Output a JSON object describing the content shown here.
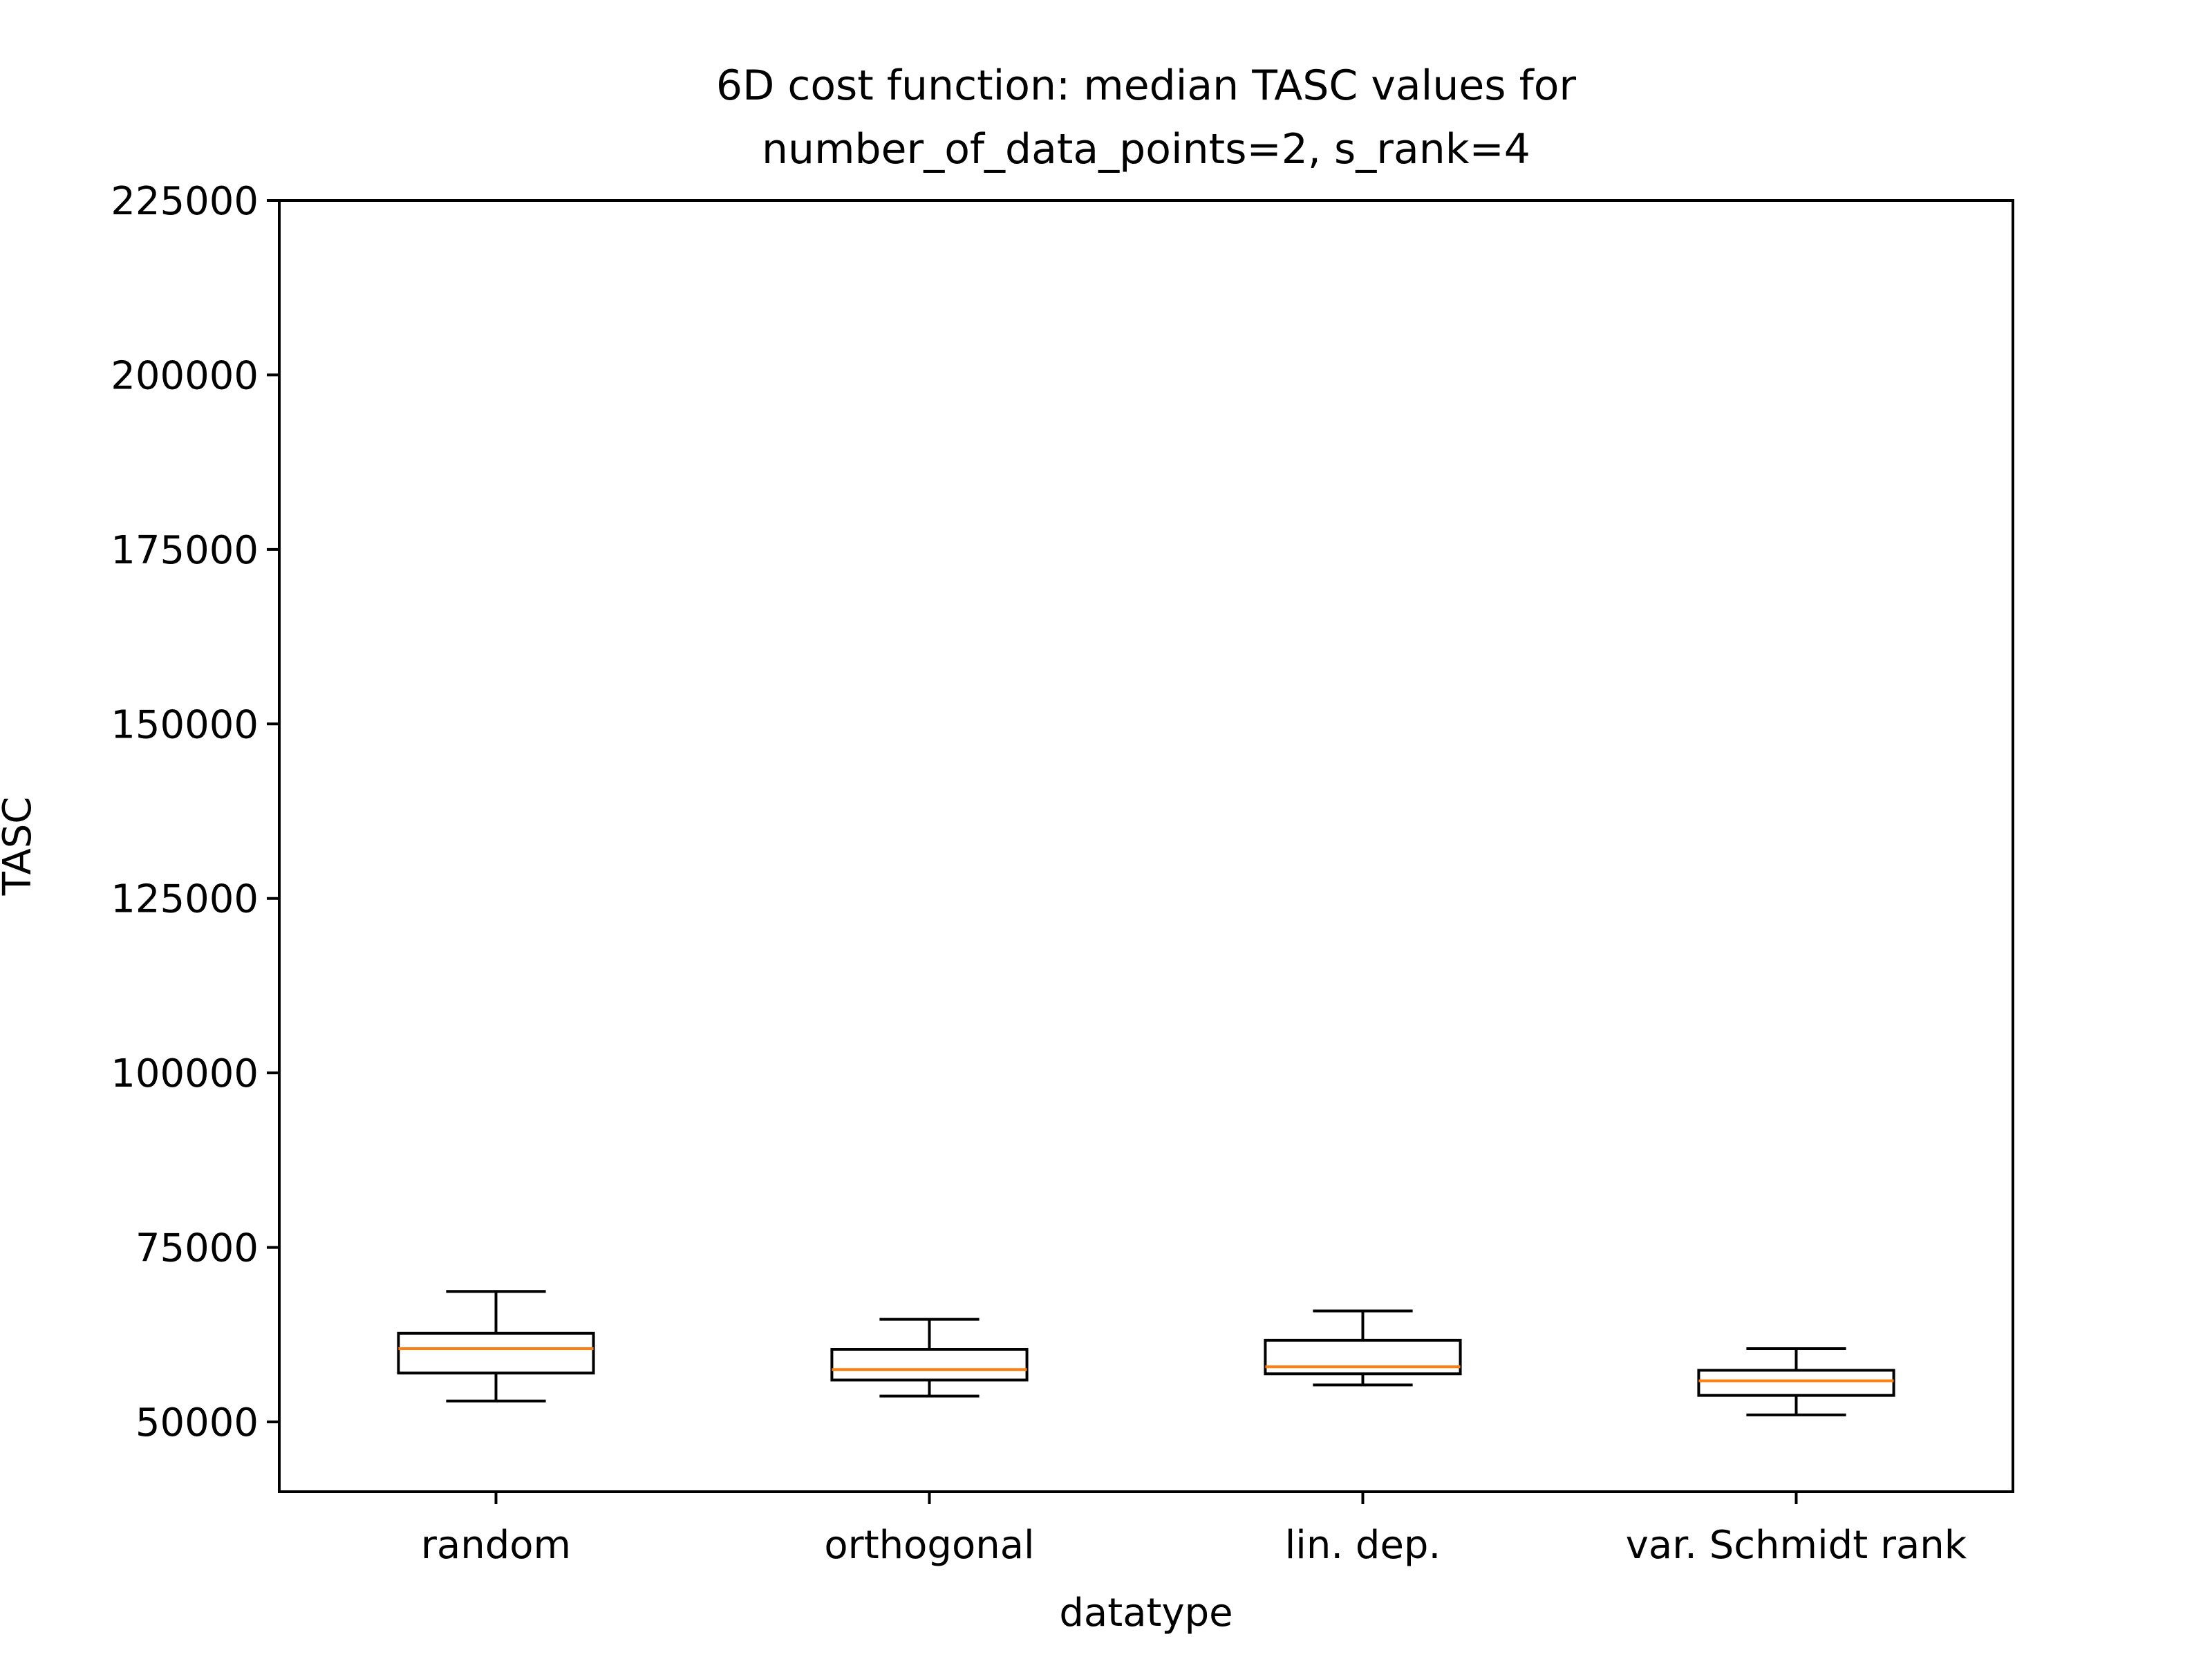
{
  "chart_data": {
    "type": "box",
    "title": [
      "6D cost function: median TASC values for",
      "number_of_data_points=2, s_rank=4"
    ],
    "xlabel": "datatype",
    "ylabel": "TASC",
    "ylim": [
      40000,
      225000
    ],
    "yticks": [
      50000,
      75000,
      100000,
      125000,
      150000,
      175000,
      200000,
      225000
    ],
    "categories": [
      "random",
      "orthogonal",
      "lin. dep.",
      "var. Schmidt rank"
    ],
    "boxes": [
      {
        "label": "random",
        "whisker_low": 53000,
        "q1": 57000,
        "median": 60500,
        "q3": 62700,
        "whisker_high": 68700
      },
      {
        "label": "orthogonal",
        "whisker_low": 53700,
        "q1": 56000,
        "median": 57500,
        "q3": 60400,
        "whisker_high": 64700
      },
      {
        "label": "lin. dep.",
        "whisker_low": 55300,
        "q1": 56900,
        "median": 57900,
        "q3": 61700,
        "whisker_high": 65900
      },
      {
        "label": "var. Schmidt rank",
        "whisker_low": 51000,
        "q1": 53800,
        "median": 55900,
        "q3": 57400,
        "whisker_high": 60500
      }
    ],
    "grid": false,
    "colors": {
      "box": "#000000",
      "median": "#ff7f0e"
    }
  }
}
